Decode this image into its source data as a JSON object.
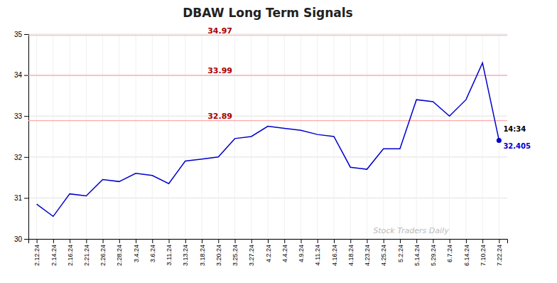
{
  "chart_data": {
    "type": "line",
    "title": "DBAW Long Term Signals",
    "categories": [
      "2.12.24",
      "2.14.24",
      "2.16.24",
      "2.21.24",
      "2.26.24",
      "2.28.24",
      "3.4.24",
      "3.6.24",
      "3.11.24",
      "3.13.24",
      "3.18.24",
      "3.20.24",
      "3.25.24",
      "3.27.24",
      "4.2.24",
      "4.4.24",
      "4.9.24",
      "4.11.24",
      "4.16.24",
      "4.18.24",
      "4.23.24",
      "4.25.24",
      "5.2.24",
      "5.14.24",
      "5.29.24",
      "6.7.24",
      "6.14.24",
      "7.10.24",
      "7.22.24"
    ],
    "values": [
      30.85,
      30.55,
      31.1,
      31.05,
      31.45,
      31.4,
      31.6,
      31.55,
      31.35,
      31.9,
      31.95,
      32.0,
      32.45,
      32.5,
      32.75,
      32.7,
      32.65,
      32.55,
      32.5,
      31.75,
      31.7,
      32.2,
      32.2,
      33.4,
      33.35,
      33.0,
      33.4,
      34.3,
      32.41
    ],
    "color": "#0000cc",
    "ylim": [
      30,
      35
    ],
    "yticks": [
      30,
      31,
      32,
      33,
      34,
      35
    ],
    "grid": true,
    "hlines": [
      {
        "value": 34.97,
        "label": "34.97",
        "color": "#ffaaaa"
      },
      {
        "value": 33.99,
        "label": "33.99",
        "color": "#ffaaaa"
      },
      {
        "value": 32.89,
        "label": "32.89",
        "color": "#ffaaaa"
      }
    ],
    "point": {
      "category": "7.22.24",
      "value": 32.405,
      "time_label": "14:34",
      "label": "32.405"
    },
    "watermark": "Stock Traders Daily"
  }
}
